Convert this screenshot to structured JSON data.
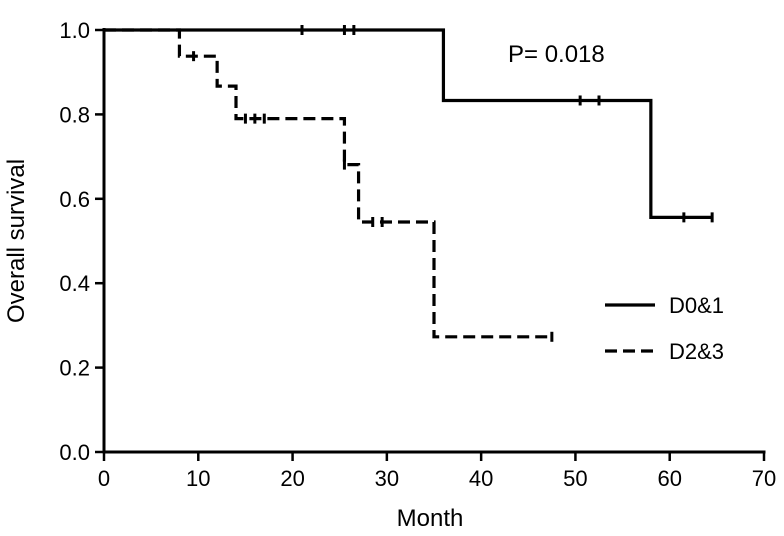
{
  "chart_data": {
    "type": "line",
    "subtype": "kaplan-meier",
    "title": "",
    "xlabel": "Month",
    "ylabel": "Overall survival",
    "xlim": [
      0,
      70
    ],
    "ylim": [
      0,
      1.0
    ],
    "x_ticks": [
      0,
      10,
      20,
      30,
      40,
      50,
      60,
      70
    ],
    "x_tick_labels": [
      "0",
      "10",
      "20",
      "30",
      "40",
      "50",
      "60",
      "70"
    ],
    "y_ticks": [
      0,
      0.2,
      0.4,
      0.6,
      0.8,
      1.0
    ],
    "y_tick_labels": [
      "0.0",
      "0.2",
      "0.4",
      "0.6",
      "0.8",
      "1.0"
    ],
    "grid": false,
    "legend_position": "right",
    "annotation": "P= 0.018",
    "series": [
      {
        "name": "D0&1",
        "style": "solid",
        "steps": [
          [
            0,
            1.0
          ],
          [
            36,
            0.833
          ],
          [
            58,
            0.556
          ]
        ],
        "end_x": 64.5,
        "censor_marks": [
          [
            21,
            1.0
          ],
          [
            25.5,
            1.0
          ],
          [
            26.5,
            1.0
          ],
          [
            50.5,
            0.833
          ],
          [
            52.5,
            0.833
          ],
          [
            61.5,
            0.556
          ],
          [
            64.5,
            0.556
          ]
        ]
      },
      {
        "name": "D2&3",
        "style": "dashed",
        "steps": [
          [
            0,
            1.0
          ],
          [
            8,
            0.938
          ],
          [
            12,
            0.867
          ],
          [
            14,
            0.79
          ],
          [
            24,
            0.79
          ],
          [
            25.5,
            0.681
          ],
          [
            27,
            0.545
          ],
          [
            35,
            0.273
          ]
        ],
        "end_x": 47.5,
        "censor_marks": [
          [
            9.5,
            0.938
          ],
          [
            15,
            0.79
          ],
          [
            16,
            0.79
          ],
          [
            17,
            0.79
          ],
          [
            25.5,
            0.681
          ],
          [
            28.5,
            0.545
          ],
          [
            29.5,
            0.545
          ],
          [
            47.5,
            0.273
          ]
        ]
      }
    ]
  }
}
